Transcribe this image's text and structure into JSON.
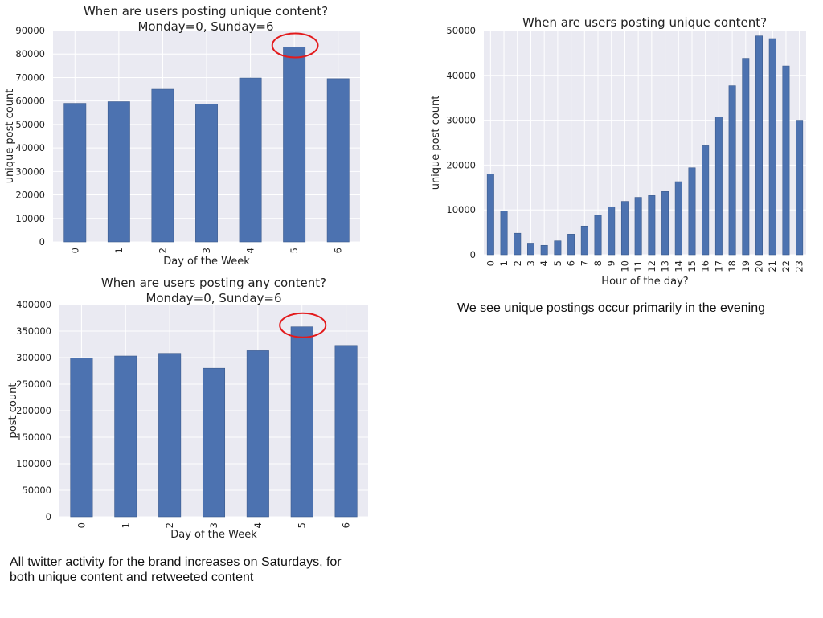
{
  "chart_data": [
    {
      "type": "bar",
      "title": "When are users posting unique content?",
      "subtitle": "Monday=0, Sunday=6",
      "xlabel": "Day of the Week",
      "ylabel": "unique post count",
      "categories": [
        "0",
        "1",
        "2",
        "3",
        "4",
        "5",
        "6"
      ],
      "values": [
        59000,
        59700,
        65000,
        58700,
        69800,
        83000,
        69500
      ],
      "ylim": [
        0,
        90000
      ],
      "yticks": [
        0,
        10000,
        20000,
        30000,
        40000,
        50000,
        60000,
        70000,
        80000,
        90000
      ],
      "highlight_category": "5",
      "bar_color": "#4c72b0",
      "highlight_color": "#e31a1c",
      "grid": true
    },
    {
      "type": "bar",
      "title": "When are users posting unique content?",
      "xlabel": "Hour of the day?",
      "ylabel": "unique post count",
      "categories": [
        "0",
        "1",
        "2",
        "3",
        "4",
        "5",
        "6",
        "7",
        "8",
        "9",
        "10",
        "11",
        "12",
        "13",
        "14",
        "15",
        "16",
        "17",
        "18",
        "19",
        "20",
        "21",
        "22",
        "23"
      ],
      "values": [
        18000,
        9800,
        4800,
        2600,
        2100,
        3100,
        4600,
        6400,
        8800,
        10700,
        11900,
        12800,
        13200,
        14100,
        16300,
        19400,
        24300,
        30700,
        37700,
        43800,
        48800,
        48200,
        42100,
        30000
      ],
      "ylim": [
        0,
        50000
      ],
      "yticks": [
        0,
        10000,
        20000,
        30000,
        40000,
        50000
      ],
      "bar_color": "#4c72b0",
      "grid": true
    },
    {
      "type": "bar",
      "title": "When are users posting any content?",
      "subtitle": "Monday=0, Sunday=6",
      "xlabel": "Day of the Week",
      "ylabel": "post count",
      "categories": [
        "0",
        "1",
        "2",
        "3",
        "4",
        "5",
        "6"
      ],
      "values": [
        299000,
        303000,
        308000,
        280000,
        313000,
        358000,
        323000
      ],
      "ylim": [
        0,
        400000
      ],
      "yticks": [
        0,
        50000,
        100000,
        150000,
        200000,
        250000,
        300000,
        350000,
        400000
      ],
      "highlight_category": "5",
      "bar_color": "#4c72b0",
      "highlight_color": "#e31a1c",
      "grid": true
    }
  ],
  "notes": {
    "hourly_note": "We see unique postings occur primarily in the evening",
    "weekly_note": "All twitter activity for the brand increases on Saturdays, for both unique content and retweeted content"
  }
}
